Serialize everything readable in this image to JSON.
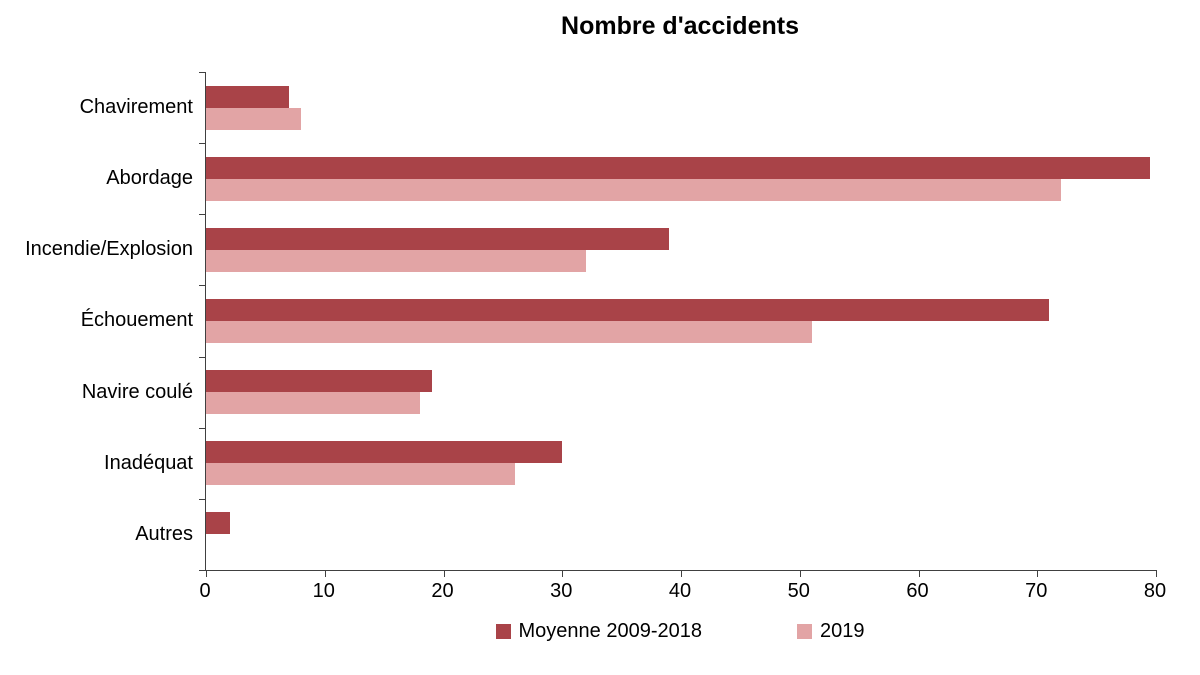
{
  "chart_data": {
    "type": "bar",
    "orientation": "horizontal",
    "title": "Nombre d'accidents",
    "categories": [
      "Chavirement",
      "Abordage",
      "Incendie/Explosion",
      "Échouement",
      "Navire coulé",
      "Inadéquat",
      "Autres"
    ],
    "series": [
      {
        "name": "Moyenne 2009-2018",
        "color": "#a94348",
        "values": [
          7,
          79.5,
          39,
          71,
          19,
          30,
          2
        ]
      },
      {
        "name": "2019",
        "color": "#e2a4a5",
        "values": [
          8,
          72,
          32,
          51,
          18,
          26,
          0
        ]
      }
    ],
    "xlim": [
      0,
      80
    ],
    "xticks": [
      0,
      10,
      20,
      30,
      40,
      50,
      60,
      70,
      80
    ],
    "grid": false,
    "legend_position": "bottom",
    "axis_color": "#404040",
    "background_color": "#ffffff"
  }
}
